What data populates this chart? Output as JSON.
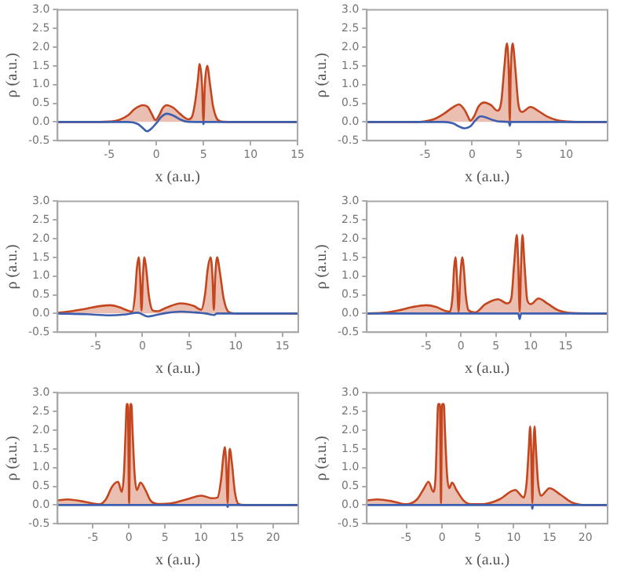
{
  "chart_data": [
    {
      "type": "area",
      "xlabel": "x (a.u.)",
      "ylabel": "ρ (a.u.)",
      "marker": "none",
      "xlim": [
        -10.5,
        15
      ],
      "xticks": [
        -5,
        0,
        5,
        10,
        15
      ],
      "ylim": [
        -0.5,
        3
      ],
      "yticks": [
        -0.5,
        {
          "value": 0,
          "label": "0.0"
        },
        0.5,
        {
          "value": 1,
          "label": "1.0"
        },
        1.5,
        {
          "value": 2,
          "label": "2.0"
        },
        2.5,
        {
          "value": 3,
          "label": "3.0"
        }
      ],
      "series": [
        {
          "type": "area",
          "color": "#c4461f",
          "x": [
            -10.5,
            -6,
            -5,
            -4,
            -3,
            -2.3,
            -1.4,
            -0.9,
            -0.5,
            -0.1,
            0.3,
            0.7,
            1.1,
            1.8,
            2.5,
            3.4,
            3.8,
            4.1,
            4.4,
            4.6,
            4.85,
            5.0,
            5.15,
            5.4,
            5.7,
            6.0,
            6.4,
            6.9,
            8,
            15
          ],
          "values": [
            0,
            0,
            0.01,
            0.05,
            0.18,
            0.35,
            0.45,
            0.4,
            0.22,
            0.05,
            0.18,
            0.38,
            0.45,
            0.38,
            0.22,
            0.07,
            0.15,
            0.5,
            1.1,
            1.55,
            1.0,
            0.02,
            1.0,
            1.5,
            1.0,
            0.45,
            0.1,
            0.01,
            0,
            0
          ]
        },
        {
          "type": "line",
          "color": "#3d5fae",
          "x": [
            -10.5,
            -3,
            -2,
            -1.5,
            -1,
            -0.5,
            0,
            0.5,
            1.1,
            1.8,
            2.5,
            3.2,
            4.5,
            4.95,
            5.0,
            5.05,
            6,
            15
          ],
          "values": [
            0,
            0,
            -0.05,
            -0.15,
            -0.25,
            -0.17,
            -0.03,
            0.13,
            0.22,
            0.17,
            0.07,
            0.01,
            0,
            0,
            -0.06,
            0,
            0,
            0
          ]
        }
      ]
    },
    {
      "type": "area",
      "xlabel": "x (a.u.)",
      "ylabel": "ρ (a.u.)",
      "marker": "none",
      "xlim": [
        -11.2,
        14.4
      ],
      "xticks": [
        -5,
        0,
        5,
        10
      ],
      "ylim": [
        -0.5,
        3
      ],
      "yticks": [
        -0.5,
        {
          "value": 0,
          "label": "0.0"
        },
        0.5,
        {
          "value": 1,
          "label": "1.0"
        },
        1.5,
        {
          "value": 2,
          "label": "2.0"
        },
        2.5,
        {
          "value": 3,
          "label": "3.0"
        }
      ],
      "series": [
        {
          "type": "area",
          "color": "#c4461f",
          "x": [
            -11.2,
            -6,
            -5,
            -4,
            -3,
            -2,
            -1.4,
            -0.8,
            -0.4,
            -0.2,
            0.2,
            0.7,
            1.3,
            2,
            2.7,
            3.1,
            3.4,
            3.7,
            3.9,
            4.0,
            4.1,
            4.3,
            4.6,
            4.9,
            5.3,
            6.2,
            7,
            8,
            9,
            10.2,
            11,
            14.4
          ],
          "values": [
            0,
            0,
            0.02,
            0.08,
            0.22,
            0.4,
            0.47,
            0.32,
            0.12,
            0.03,
            0.15,
            0.42,
            0.52,
            0.45,
            0.3,
            0.55,
            1.4,
            2.1,
            1.3,
            0.02,
            1.3,
            2.1,
            1.4,
            0.5,
            0.27,
            0.4,
            0.3,
            0.14,
            0.05,
            0.01,
            0,
            0
          ]
        },
        {
          "type": "line",
          "color": "#3d5fae",
          "x": [
            -11.2,
            -3,
            -2,
            -1.4,
            -0.8,
            -0.2,
            0.3,
            0.9,
            1.5,
            2.2,
            3,
            3.9,
            4.0,
            4.1,
            5,
            14.4
          ],
          "values": [
            0,
            0,
            -0.04,
            -0.12,
            -0.17,
            -0.12,
            0.03,
            0.15,
            0.12,
            0.05,
            0.01,
            0,
            -0.1,
            0,
            0,
            0
          ]
        }
      ]
    },
    {
      "type": "area",
      "xlabel": "x (a.u.)",
      "ylabel": "ρ (a.u.)",
      "marker": "none",
      "xlim": [
        -9.1,
        16.7
      ],
      "xticks": [
        -5,
        0,
        5,
        10,
        15
      ],
      "ylim": [
        -0.5,
        3
      ],
      "yticks": [
        -0.5,
        {
          "value": 0,
          "label": "0.0"
        },
        0.5,
        {
          "value": 1,
          "label": "1.0"
        },
        1.5,
        {
          "value": 2,
          "label": "2.0"
        },
        2.5,
        {
          "value": 3,
          "label": "3.0"
        }
      ],
      "series": [
        {
          "type": "area",
          "color": "#c4461f",
          "x": [
            -9.1,
            -8,
            -6,
            -4.5,
            -3.4,
            -2.5,
            -1.6,
            -1.1,
            -0.8,
            -0.6,
            -0.4,
            -0.25,
            -0.1,
            0.05,
            0.2,
            0.4,
            0.7,
            1.1,
            1.6,
            2.5,
            4.1,
            5.5,
            6.3,
            6.7,
            7.0,
            7.3,
            7.5,
            7.65,
            7.8,
            8.0,
            8.3,
            8.7,
            9.2,
            10,
            16.7
          ],
          "values": [
            0.02,
            0.05,
            0.13,
            0.2,
            0.22,
            0.17,
            0.08,
            0.05,
            0.5,
            1.2,
            1.5,
            1.0,
            0.08,
            1.0,
            1.5,
            1.2,
            0.45,
            0.08,
            0.06,
            0.15,
            0.27,
            0.2,
            0.1,
            0.5,
            1.2,
            1.5,
            1.0,
            0.1,
            1.0,
            1.5,
            1.1,
            0.4,
            0.05,
            0,
            0
          ]
        },
        {
          "type": "line",
          "color": "#3d5fae",
          "x": [
            -9.1,
            -6,
            -3.5,
            -2,
            -0.5,
            0.6,
            1.5,
            2.5,
            4.1,
            5.5,
            6.8,
            7.65,
            8,
            16.7
          ],
          "values": [
            0,
            -0.02,
            -0.05,
            -0.03,
            0.02,
            -0.08,
            -0.04,
            0.01,
            0.05,
            0.03,
            0,
            -0.04,
            0,
            0
          ]
        }
      ]
    },
    {
      "type": "area",
      "xlabel": "x (a.u.)",
      "ylabel": "ρ (a.u.)",
      "marker": "none",
      "xlim": [
        -13.5,
        21
      ],
      "xticks": [
        -5,
        0,
        5,
        10,
        15
      ],
      "ylim": [
        -0.5,
        3
      ],
      "yticks": [
        -0.5,
        {
          "value": 0,
          "label": "0.0"
        },
        0.5,
        {
          "value": 1,
          "label": "1.0"
        },
        1.5,
        {
          "value": 2,
          "label": "2.0"
        },
        2.5,
        {
          "value": 3,
          "label": "3.0"
        }
      ],
      "series": [
        {
          "type": "area",
          "color": "#c4461f",
          "x": [
            -13.5,
            -11,
            -9,
            -7,
            -5,
            -3.5,
            -2.3,
            -1.6,
            -1.2,
            -1.0,
            -0.8,
            -0.6,
            -0.35,
            -0.1,
            0.2,
            0.4,
            0.7,
            1.1,
            2,
            3.5,
            5.3,
            6.6,
            7.2,
            7.6,
            8.0,
            8.2,
            8.4,
            8.6,
            8.8,
            9.1,
            9.5,
            10,
            11.1,
            12.5,
            14,
            16,
            21
          ],
          "values": [
            0,
            0.02,
            0.08,
            0.17,
            0.22,
            0.17,
            0.07,
            0.05,
            0.5,
            1.2,
            1.5,
            1.0,
            0.05,
            1.0,
            1.5,
            1.2,
            0.45,
            0.08,
            0.03,
            0.25,
            0.38,
            0.27,
            0.4,
            1.3,
            2.1,
            1.3,
            0.05,
            1.3,
            2.1,
            1.3,
            0.35,
            0.25,
            0.4,
            0.25,
            0.08,
            0.01,
            0
          ]
        },
        {
          "type": "line",
          "color": "#3d5fae",
          "x": [
            -13.5,
            8.2,
            8.4,
            8.6,
            21
          ],
          "values": [
            0,
            0,
            -0.15,
            0,
            0
          ]
        }
      ]
    },
    {
      "type": "area",
      "xlabel": "x (a.u.)",
      "ylabel": "ρ (a.u.)",
      "marker": "none",
      "xlim": [
        -9.9,
        23.5
      ],
      "xticks": [
        -5,
        0,
        5,
        10,
        15,
        20
      ],
      "ylim": [
        -0.5,
        3
      ],
      "yticks": [
        -0.5,
        {
          "value": 0,
          "label": "0.0"
        },
        0.5,
        {
          "value": 1,
          "label": "1.0"
        },
        1.5,
        {
          "value": 2,
          "label": "2.0"
        },
        2.5,
        {
          "value": 3,
          "label": "3.0"
        }
      ],
      "series": [
        {
          "type": "area",
          "color": "#c4461f",
          "x": [
            -9.9,
            -8.5,
            -6.5,
            -4.1,
            -3.2,
            -2.3,
            -1.5,
            -1.0,
            -0.7,
            -0.45,
            -0.3,
            -0.15,
            0.03,
            0.2,
            0.35,
            0.5,
            0.8,
            1.1,
            1.6,
            2.3,
            3,
            4,
            6,
            8,
            10.1,
            11.5,
            12.3,
            12.8,
            13.1,
            13.3,
            13.5,
            13.7,
            13.85,
            14.0,
            14.3,
            14.7,
            15.2,
            16,
            23.5
          ],
          "values": [
            0.12,
            0.15,
            0.1,
            0.02,
            0.15,
            0.5,
            0.62,
            0.35,
            0.8,
            2.0,
            2.7,
            2.7,
            0.05,
            2.7,
            2.7,
            2.0,
            0.8,
            0.4,
            0.6,
            0.4,
            0.12,
            0.03,
            0.05,
            0.15,
            0.25,
            0.18,
            0.2,
            0.7,
            1.3,
            1.55,
            1.1,
            0.05,
            1.1,
            1.5,
            1.1,
            0.35,
            0.03,
            0,
            0
          ]
        },
        {
          "type": "line",
          "color": "#3d5fae",
          "x": [
            -9.9,
            13.6,
            13.7,
            13.8,
            23.5
          ],
          "values": [
            0,
            0,
            -0.05,
            0,
            0
          ]
        }
      ]
    },
    {
      "type": "area",
      "xlabel": "x (a.u.)",
      "ylabel": "ρ (a.u.)",
      "marker": "none",
      "xlim": [
        -10.5,
        23.1
      ],
      "xticks": [
        -5,
        0,
        5,
        10,
        15,
        20
      ],
      "ylim": [
        -0.5,
        3
      ],
      "yticks": [
        -0.5,
        {
          "value": 0,
          "label": "0.0"
        },
        0.5,
        {
          "value": 1,
          "label": "1.0"
        },
        1.5,
        {
          "value": 2,
          "label": "2.0"
        },
        2.5,
        {
          "value": 3,
          "label": "3.0"
        }
      ],
      "series": [
        {
          "type": "area",
          "color": "#c4461f",
          "x": [
            -10.5,
            -9,
            -7,
            -5,
            -3.5,
            -2.5,
            -1.9,
            -1.2,
            -0.9,
            -0.7,
            -0.55,
            -0.3,
            -0.15,
            0.0,
            0.25,
            0.4,
            0.7,
            1.0,
            1.4,
            2,
            3,
            4,
            6,
            8,
            10.2,
            11.4,
            11.8,
            12.1,
            12.3,
            12.45,
            12.6,
            12.75,
            12.9,
            13.1,
            13.4,
            13.8,
            15,
            16.5,
            18,
            19,
            20,
            23.1
          ],
          "values": [
            0.12,
            0.15,
            0.1,
            0.02,
            0.15,
            0.45,
            0.62,
            0.35,
            0.8,
            2.0,
            2.7,
            2.7,
            0.05,
            2.7,
            2.7,
            2.0,
            0.8,
            0.45,
            0.6,
            0.4,
            0.12,
            0.02,
            0.03,
            0.15,
            0.4,
            0.2,
            0.6,
            1.5,
            2.1,
            1.4,
            0.05,
            1.4,
            2.1,
            1.5,
            0.6,
            0.25,
            0.45,
            0.28,
            0.08,
            0.02,
            0,
            0
          ]
        },
        {
          "type": "line",
          "color": "#3d5fae",
          "x": [
            -10.5,
            12.5,
            12.6,
            12.7,
            23.1
          ],
          "values": [
            0,
            0,
            -0.1,
            0,
            0
          ]
        }
      ]
    }
  ]
}
